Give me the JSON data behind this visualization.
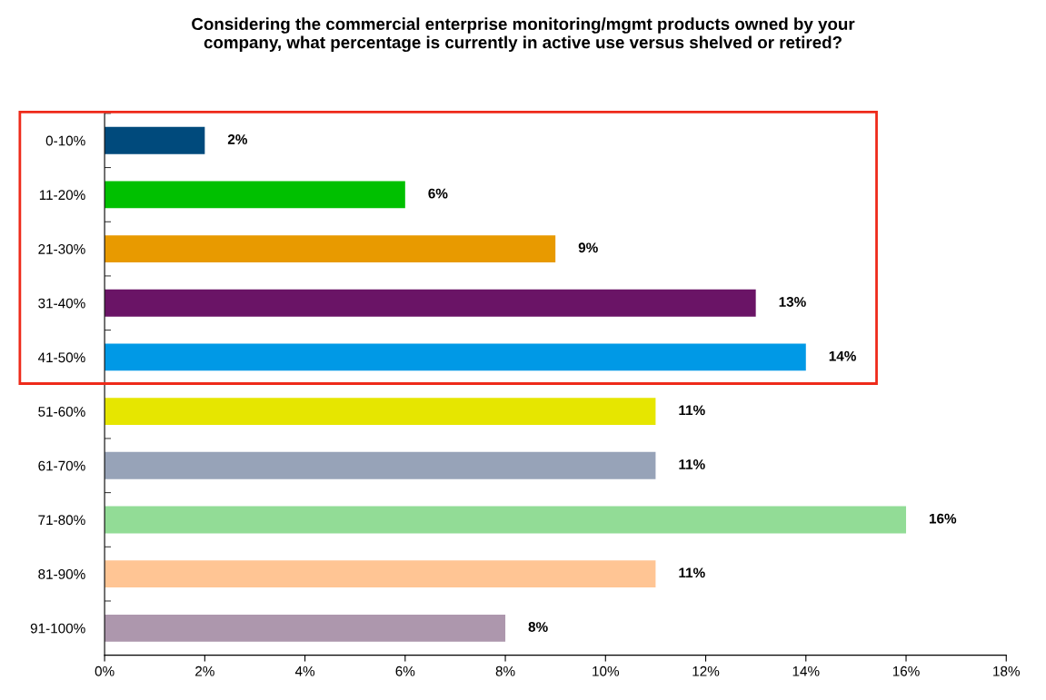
{
  "chart_data": {
    "type": "bar",
    "orientation": "horizontal",
    "title": "Considering the commercial enterprise monitoring/mgmt products owned by your\ncompany, what percentage is currently in active use versus shelved or retired?",
    "categories": [
      "0-10%",
      "11-20%",
      "21-30%",
      "31-40%",
      "41-50%",
      "51-60%",
      "61-70%",
      "71-80%",
      "81-90%",
      "91-100%"
    ],
    "values": [
      2,
      6,
      9,
      13,
      14,
      11,
      11,
      16,
      11,
      8
    ],
    "colors": [
      "#004a7c",
      "#00c000",
      "#e89a00",
      "#6a1466",
      "#0099e6",
      "#e6e600",
      "#97a3b8",
      "#92dc96",
      "#ffc594",
      "#ad97ad"
    ],
    "value_labels": [
      "2%",
      "6%",
      "9%",
      "13%",
      "14%",
      "11%",
      "11%",
      "16%",
      "11%",
      "8%"
    ],
    "xlim": [
      0,
      18
    ],
    "xticks": [
      {
        "value": 0,
        "label": "0%"
      },
      {
        "value": 2,
        "label": "2%"
      },
      {
        "value": 4,
        "label": "4%"
      },
      {
        "value": 6,
        "label": "6%"
      },
      {
        "value": 8,
        "label": "8%"
      },
      {
        "value": 10,
        "label": "10%"
      },
      {
        "value": 12,
        "label": "12%"
      },
      {
        "value": 14,
        "label": "14%"
      },
      {
        "value": 16,
        "label": "16%"
      },
      {
        "value": 18,
        "label": "18%"
      }
    ],
    "grid": false,
    "legend": false
  }
}
